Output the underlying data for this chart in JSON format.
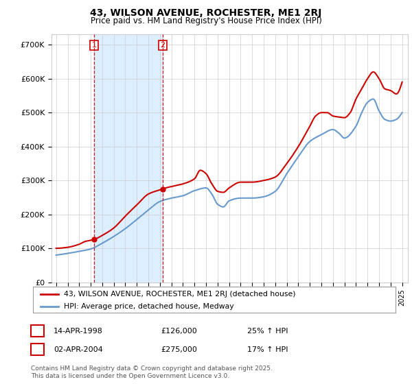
{
  "title": "43, WILSON AVENUE, ROCHESTER, ME1 2RJ",
  "subtitle": "Price paid vs. HM Land Registry's House Price Index (HPI)",
  "legend_line1": "43, WILSON AVENUE, ROCHESTER, ME1 2RJ (detached house)",
  "legend_line2": "HPI: Average price, detached house, Medway",
  "sale1_date": "14-APR-1998",
  "sale1_price": "£126,000",
  "sale1_pct": "25% ↑ HPI",
  "sale1_year": 1998.29,
  "sale1_price_val": 126000,
  "sale2_date": "02-APR-2004",
  "sale2_price": "£275,000",
  "sale2_pct": "17% ↑ HPI",
  "sale2_year": 2004.25,
  "sale2_price_val": 275000,
  "footer": "Contains HM Land Registry data © Crown copyright and database right 2025.\nThis data is licensed under the Open Government Licence v3.0.",
  "red_color": "#cc0000",
  "blue_color": "#6699cc",
  "shade_color": "#ddeeff",
  "grid_color": "#cccccc",
  "background_color": "#ffffff",
  "ylim": [
    0,
    730000
  ],
  "yticks": [
    0,
    100000,
    200000,
    300000,
    400000,
    500000,
    600000,
    700000
  ],
  "ytick_labels": [
    "£0",
    "£100K",
    "£200K",
    "£300K",
    "£400K",
    "£500K",
    "£600K",
    "£700K"
  ],
  "xlim_min": 1994.6,
  "xlim_max": 2025.5
}
